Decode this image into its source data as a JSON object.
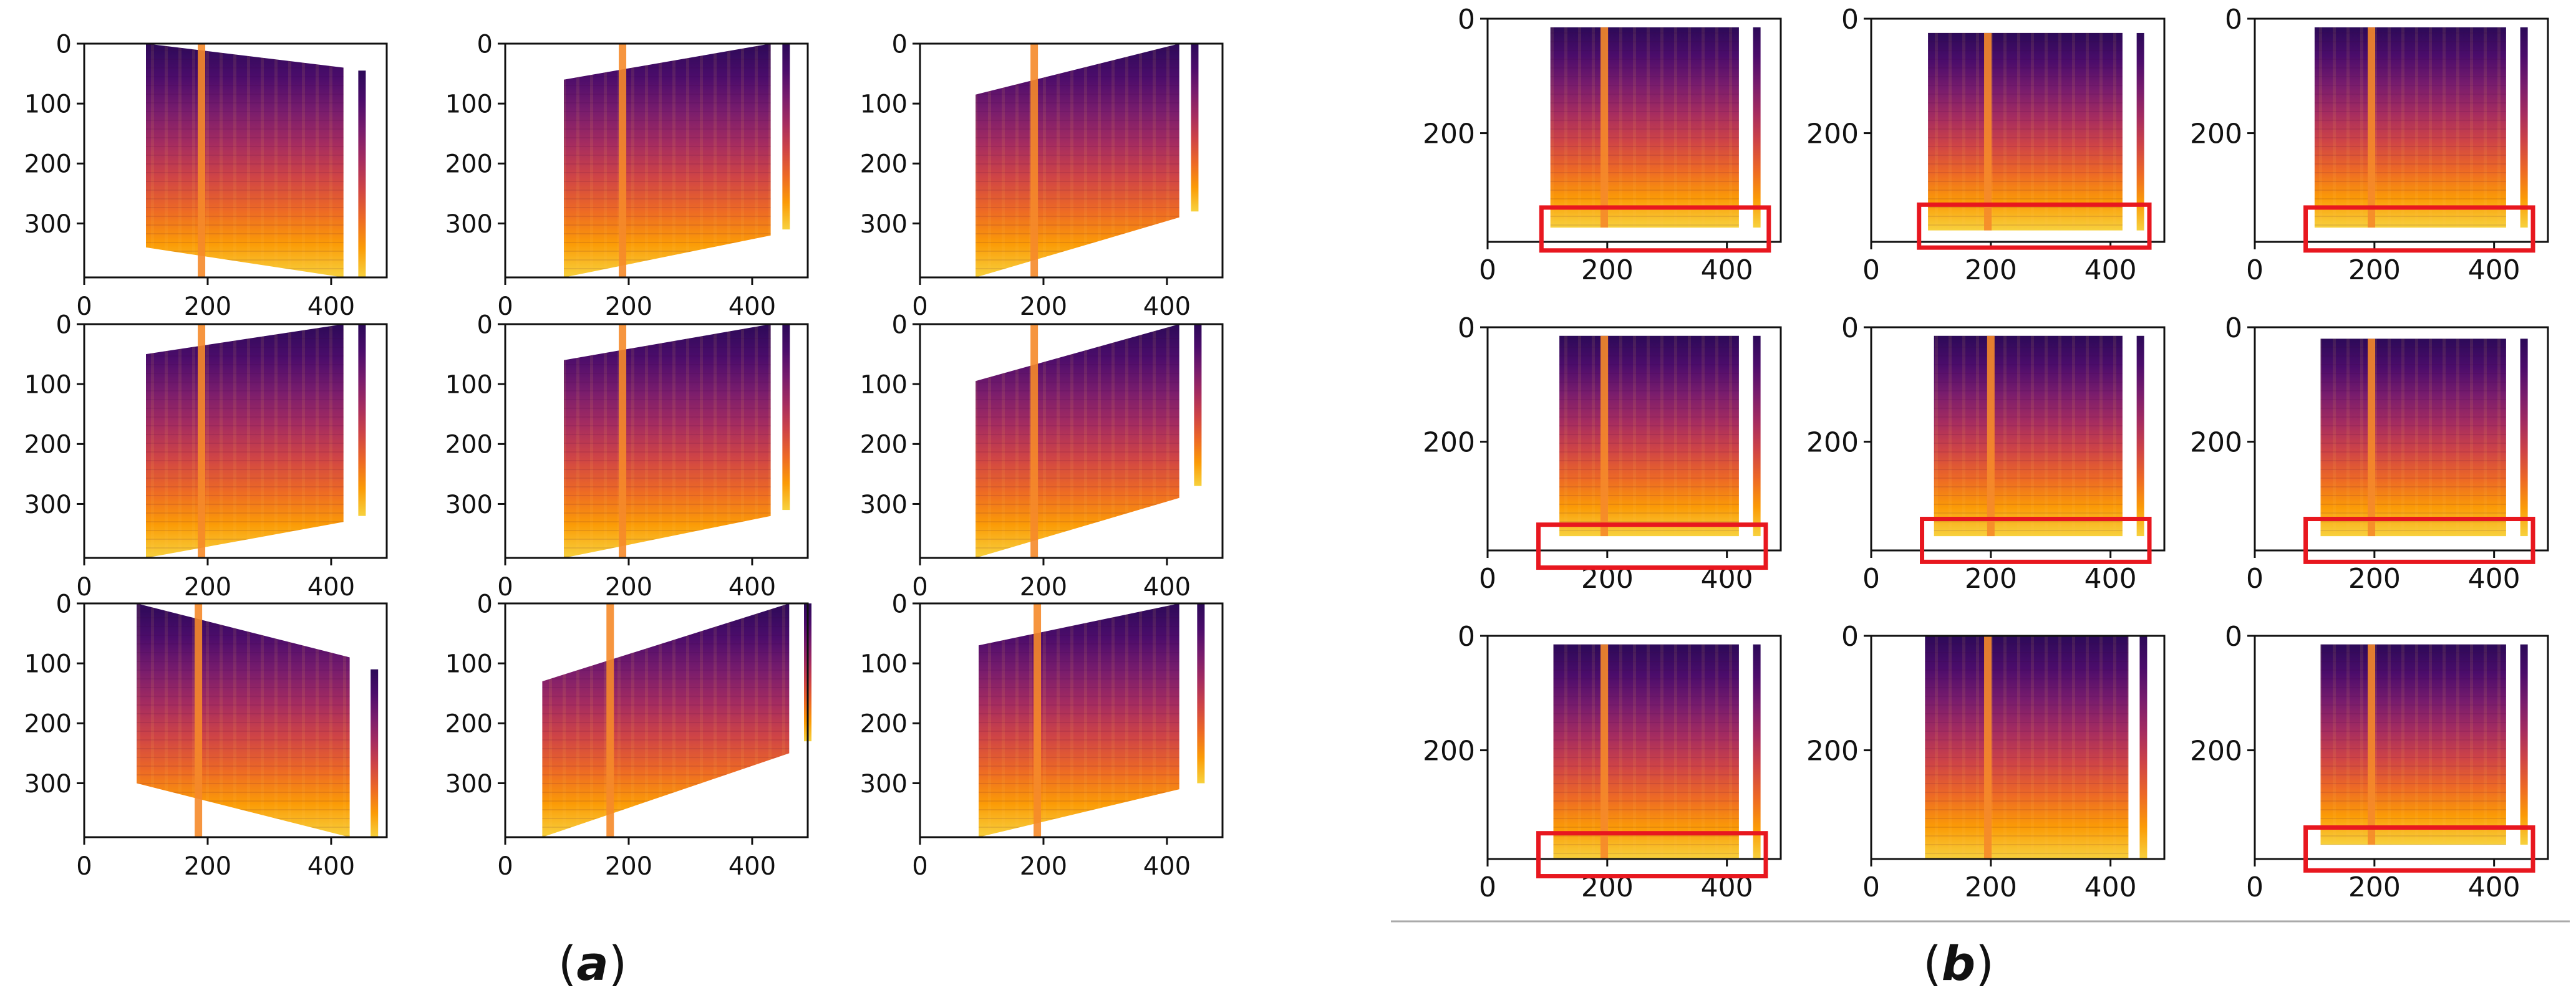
{
  "figure": {
    "panel_a_caption": [
      "(",
      "a",
      ")"
    ],
    "panel_b_caption": [
      "(",
      "b",
      ")"
    ]
  },
  "colors": {
    "plot_bg": "#ffffff",
    "axis": "#111111",
    "highlight_box": "#e8171f",
    "separator": "#aaaaaa",
    "spectrogram_ramp": [
      "#2c0a58",
      "#4b0c6b",
      "#781c6d",
      "#a52c60",
      "#cf4446",
      "#ed6925",
      "#fb9b06",
      "#f7d13d"
    ]
  },
  "chart_data": [
    {
      "type": "heatmap",
      "panel": "a",
      "title": "",
      "description_grid": "3x3 spectrogram images after random affine warp",
      "xlim": [
        0,
        490
      ],
      "ylim": [
        390,
        0
      ],
      "xticks": [
        0,
        200,
        400
      ],
      "yticks": [
        0,
        100,
        200,
        300
      ],
      "subplots": [
        {
          "x0": 100,
          "x1": 420,
          "y_left": [
            0,
            340
          ],
          "y_right": [
            40,
            390
          ],
          "stripe_x": 190,
          "side_x": 450,
          "side_y": [
            45,
            390
          ]
        },
        {
          "x0": 95,
          "x1": 430,
          "y_left": [
            60,
            390
          ],
          "y_right": [
            0,
            320
          ],
          "stripe_x": 190,
          "side_x": 455,
          "side_y": [
            0,
            310
          ]
        },
        {
          "x0": 90,
          "x1": 420,
          "y_left": [
            85,
            390
          ],
          "y_right": [
            0,
            290
          ],
          "stripe_x": 185,
          "side_x": 445,
          "side_y": [
            0,
            280
          ]
        },
        {
          "x0": 100,
          "x1": 420,
          "y_left": [
            50,
            390
          ],
          "y_right": [
            0,
            330
          ],
          "stripe_x": 190,
          "side_x": 450,
          "side_y": [
            0,
            320
          ]
        },
        {
          "x0": 95,
          "x1": 430,
          "y_left": [
            60,
            390
          ],
          "y_right": [
            0,
            320
          ],
          "stripe_x": 190,
          "side_x": 455,
          "side_y": [
            0,
            310
          ]
        },
        {
          "x0": 90,
          "x1": 420,
          "y_left": [
            95,
            390
          ],
          "y_right": [
            0,
            290
          ],
          "stripe_x": 185,
          "side_x": 450,
          "side_y": [
            0,
            270
          ]
        },
        {
          "x0": 85,
          "x1": 430,
          "y_left": [
            0,
            300
          ],
          "y_right": [
            90,
            390
          ],
          "stripe_x": 185,
          "side_x": 470,
          "side_y": [
            110,
            390
          ]
        },
        {
          "x0": 60,
          "x1": 460,
          "y_left": [
            130,
            390
          ],
          "y_right": [
            0,
            250
          ],
          "stripe_x": 170,
          "side_x": 490,
          "side_y": [
            0,
            230
          ]
        },
        {
          "x0": 95,
          "x1": 420,
          "y_left": [
            70,
            390
          ],
          "y_right": [
            0,
            310
          ],
          "stripe_x": 190,
          "side_x": 455,
          "side_y": [
            0,
            300
          ]
        }
      ]
    },
    {
      "type": "heatmap",
      "panel": "b",
      "title": "",
      "description_grid": "3x3 spectrogram images with frequency masking, masked band highlighted",
      "xlim": [
        0,
        490
      ],
      "ylim": [
        390,
        0
      ],
      "xticks": [
        0,
        200,
        400
      ],
      "yticks": [
        0,
        200
      ],
      "subplots": [
        {
          "x0": 105,
          "x1": 420,
          "y_top": 15,
          "y_bottom": 365,
          "stripe_x": 195,
          "side_x": 450,
          "side_y": [
            15,
            365
          ],
          "box_x": [
            90,
            470
          ],
          "box_y": [
            330,
            405
          ]
        },
        {
          "x0": 95,
          "x1": 420,
          "y_top": 25,
          "y_bottom": 370,
          "stripe_x": 195,
          "side_x": 450,
          "side_y": [
            25,
            370
          ],
          "box_x": [
            80,
            465
          ],
          "box_y": [
            325,
            400
          ]
        },
        {
          "x0": 100,
          "x1": 420,
          "y_top": 15,
          "y_bottom": 365,
          "stripe_x": 195,
          "side_x": 450,
          "side_y": [
            15,
            365
          ],
          "box_x": [
            85,
            465
          ],
          "box_y": [
            330,
            405
          ]
        },
        {
          "x0": 120,
          "x1": 420,
          "y_top": 15,
          "y_bottom": 365,
          "stripe_x": 195,
          "side_x": 450,
          "side_y": [
            15,
            365
          ],
          "box_x": [
            85,
            465
          ],
          "box_y": [
            345,
            420
          ]
        },
        {
          "x0": 105,
          "x1": 420,
          "y_top": 15,
          "y_bottom": 365,
          "stripe_x": 200,
          "side_x": 450,
          "side_y": [
            15,
            365
          ],
          "box_x": [
            85,
            465
          ],
          "box_y": [
            335,
            410
          ]
        },
        {
          "x0": 110,
          "x1": 420,
          "y_top": 20,
          "y_bottom": 365,
          "stripe_x": 195,
          "side_x": 450,
          "side_y": [
            20,
            365
          ],
          "box_x": [
            85,
            465
          ],
          "box_y": [
            335,
            410
          ]
        },
        {
          "x0": 110,
          "x1": 420,
          "y_top": 15,
          "y_bottom": 390,
          "stripe_x": 195,
          "side_x": 450,
          "side_y": [
            15,
            390
          ],
          "box_x": [
            85,
            465
          ],
          "box_y": [
            345,
            420
          ]
        },
        {
          "x0": 90,
          "x1": 430,
          "y_top": 0,
          "y_bottom": 390,
          "stripe_x": 195,
          "side_x": 455,
          "side_y": [
            0,
            390
          ],
          "box": null
        },
        {
          "x0": 110,
          "x1": 420,
          "y_top": 15,
          "y_bottom": 365,
          "stripe_x": 195,
          "side_x": 450,
          "side_y": [
            15,
            365
          ],
          "box_x": [
            85,
            465
          ],
          "box_y": [
            335,
            410
          ]
        }
      ]
    }
  ]
}
